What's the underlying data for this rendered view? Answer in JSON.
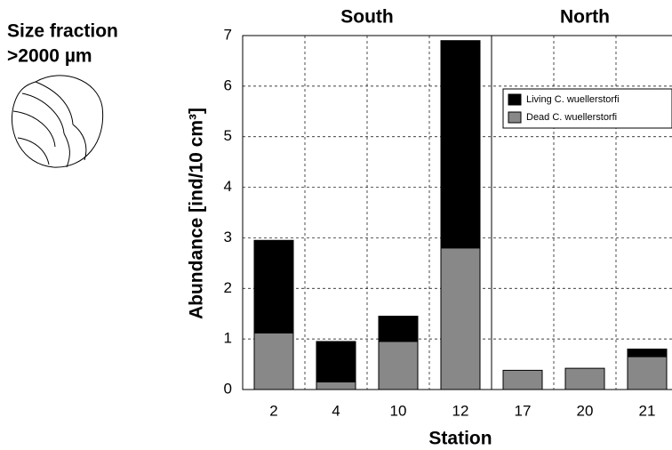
{
  "chart_data": {
    "type": "stacked-bar",
    "side_label": [
      "Size fraction",
      ">2000 µm"
    ],
    "group_labels": [
      "South",
      "North"
    ],
    "categories": [
      "2",
      "4",
      "10",
      "12",
      "17",
      "20",
      "21"
    ],
    "series": [
      {
        "name": "Dead  C. wuellerstorfi",
        "color": "#888888",
        "values": [
          1.12,
          0.15,
          0.95,
          2.8,
          0.38,
          0.42,
          0.65
        ]
      },
      {
        "name": "Living C. wuellerstorfi",
        "color": "#000000",
        "values": [
          1.83,
          0.8,
          0.5,
          4.1,
          null,
          null,
          0.15
        ]
      }
    ],
    "ylabel": "Abundance [ind/10 cm³]",
    "xlabel": "Station",
    "ylim": [
      0,
      7
    ],
    "yticks": [
      0,
      1,
      2,
      3,
      4,
      5,
      6,
      7
    ],
    "grid": true,
    "legend": "upper right"
  }
}
